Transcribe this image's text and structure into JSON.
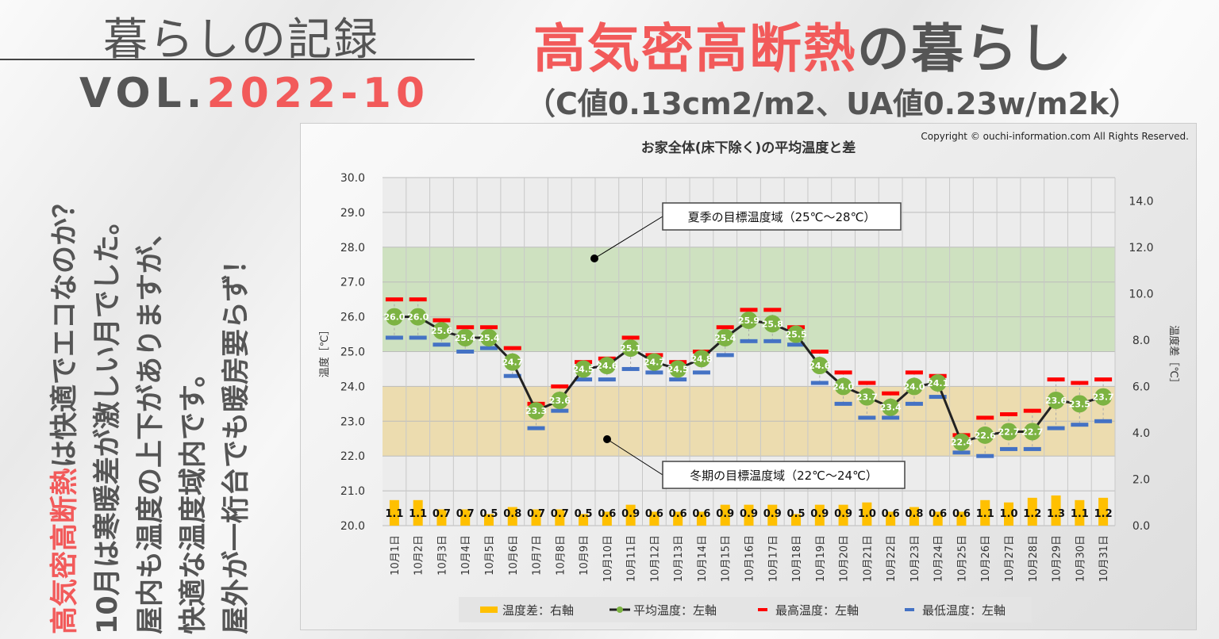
{
  "header": {
    "left_title": "暮らしの記録",
    "vol_prefix": "VOL.",
    "vol_number": "2022-10",
    "title_red": "高気密高断熱",
    "title_rest": "の暮らし",
    "subtitle": "（C値0.13cm2/m2、UA値0.23w/m2k）"
  },
  "side_text": {
    "line1_red": "高気密高断熱",
    "line1_rest": "は快適でエコなのか？",
    "line2": "10月は寒暖差が激しい月でした。",
    "line3": "屋内も温度の上下がありますが、",
    "line4": "快適な温度域内です。",
    "line5": "屋外が一桁台でも暖房要らず！"
  },
  "colors": {
    "accent": "#f25a5a",
    "avg": "#7cb342",
    "max": "#ff0000",
    "min": "#4472c4",
    "diff": "#ffc000",
    "summer_band": "#c9dfb8",
    "winter_band": "#ecd9a4"
  },
  "chart_data": {
    "type": "line+bar",
    "title": "お家全体(床下除く)の平均温度と差",
    "copyright": "Copyright © ouchi-information.com All Rights Reserved.",
    "ylabel": "温度［℃］",
    "y2label": "温度差［℃］",
    "ylim": [
      20,
      30
    ],
    "y2lim": [
      0,
      15
    ],
    "yticks": [
      "20.0",
      "21.0",
      "22.0",
      "23.0",
      "24.0",
      "25.0",
      "26.0",
      "27.0",
      "28.0",
      "29.0",
      "30.0"
    ],
    "y2ticks": [
      "0.0",
      "2.0",
      "4.0",
      "6.0",
      "8.0",
      "10.0",
      "12.0",
      "14.0"
    ],
    "grid": true,
    "categories": [
      "10月1日",
      "10月2日",
      "10月3日",
      "10月4日",
      "10月5日",
      "10月6日",
      "10月7日",
      "10月8日",
      "10月9日",
      "10月10日",
      "10月11日",
      "10月12日",
      "10月13日",
      "10月14日",
      "10月15日",
      "10月16日",
      "10月17日",
      "10月18日",
      "10月19日",
      "10月20日",
      "10月21日",
      "10月22日",
      "10月23日",
      "10月24日",
      "10月25日",
      "10月26日",
      "10月27日",
      "10月28日",
      "10月29日",
      "10月30日",
      "10月31日"
    ],
    "series": [
      {
        "name": "温度差：右軸",
        "type": "bar",
        "axis": "right",
        "values": [
          1.1,
          1.1,
          0.7,
          0.7,
          0.5,
          0.8,
          0.7,
          0.7,
          0.5,
          0.6,
          0.9,
          0.6,
          0.6,
          0.6,
          0.9,
          0.9,
          0.9,
          0.5,
          0.9,
          0.9,
          1.0,
          0.6,
          0.8,
          0.6,
          0.6,
          1.1,
          1.0,
          1.2,
          1.3,
          1.1,
          1.2
        ]
      },
      {
        "name": "平均温度：左軸",
        "type": "line",
        "axis": "left",
        "values": [
          26.0,
          26.0,
          25.6,
          25.4,
          25.4,
          24.7,
          23.3,
          23.6,
          24.5,
          24.6,
          25.1,
          24.7,
          24.5,
          24.8,
          25.4,
          25.9,
          25.8,
          25.5,
          24.6,
          24.0,
          23.7,
          23.4,
          24.0,
          24.1,
          22.4,
          22.6,
          22.7,
          22.7,
          23.6,
          23.5,
          23.7
        ]
      },
      {
        "name": "最高温度：左軸",
        "type": "marker",
        "axis": "left",
        "values": [
          26.5,
          26.5,
          25.9,
          25.7,
          25.7,
          25.1,
          23.5,
          24.0,
          24.7,
          24.8,
          25.4,
          24.9,
          24.7,
          25.0,
          25.7,
          26.2,
          26.2,
          25.7,
          25.0,
          24.4,
          24.1,
          23.8,
          24.4,
          24.3,
          22.6,
          23.1,
          23.2,
          23.3,
          24.2,
          24.1,
          24.2
        ]
      },
      {
        "name": "最低温度：左軸",
        "type": "marker",
        "axis": "left",
        "values": [
          25.4,
          25.4,
          25.2,
          25.0,
          25.1,
          24.3,
          22.8,
          23.3,
          24.2,
          24.2,
          24.5,
          24.4,
          24.2,
          24.4,
          24.9,
          25.3,
          25.3,
          25.2,
          24.1,
          23.5,
          23.1,
          23.1,
          23.5,
          23.7,
          22.1,
          22.0,
          22.2,
          22.2,
          22.8,
          22.9,
          23.0
        ]
      }
    ],
    "bands": [
      {
        "label": "夏季の目標温度域（25℃～28℃）",
        "range": [
          25,
          28
        ]
      },
      {
        "label": "冬期の目標温度域（22℃～24℃）",
        "range": [
          22,
          24
        ]
      }
    ],
    "legend_position": "bottom"
  }
}
